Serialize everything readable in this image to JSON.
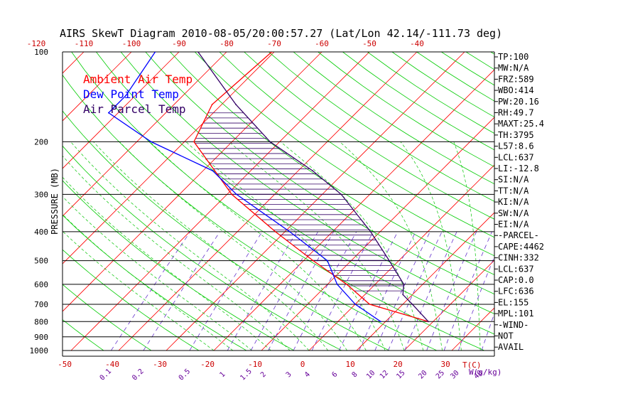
{
  "chart_data": {
    "type": "skew-t",
    "title": "AIRS SkewT Diagram 2010-08-05/20:00:57.27 (Lat/Lon 42.14/-111.73 deg)",
    "ylabel": "PRESSURE (MB)",
    "temp_unit_label": "T(C)",
    "mixing_unit_label": "W(g/kg)",
    "pressure_ticks": [
      "100",
      "200",
      "300",
      "400",
      "500",
      "600",
      "700",
      "800",
      "900",
      "1000"
    ],
    "pressure_levels": [
      100,
      200,
      300,
      400,
      500,
      600,
      700,
      800,
      900,
      1000
    ],
    "bottom_temp_ticks": [
      "-50",
      "-40",
      "-30",
      "-20",
      "-10",
      "0",
      "10",
      "20",
      "30"
    ],
    "top_temp_ticks": [
      "-120",
      "-110",
      "-100",
      "-90",
      "-80",
      "-70",
      "-60",
      "-50",
      "-40"
    ],
    "mixing_ratio_ticks": [
      "0.1",
      "0.2",
      "0.5",
      "1",
      "1.5",
      "2",
      "3",
      "4",
      "6",
      "8",
      "10",
      "12",
      "15",
      "20",
      "25",
      "30",
      "40",
      "50"
    ],
    "legend": [
      {
        "label": "Ambient Air Temp",
        "color": "#ff0000"
      },
      {
        "label": "Dew Point Temp",
        "color": "#0000ff"
      },
      {
        "label": "Air Parcel Temp",
        "color": "#330066"
      }
    ],
    "series": [
      {
        "name": "Ambient Air Temp",
        "color": "#ff0000",
        "points": [
          [
            100,
            -70.5
          ],
          [
            150,
            -72
          ],
          [
            200,
            -68
          ],
          [
            300,
            -49
          ],
          [
            400,
            -32
          ],
          [
            500,
            -18
          ],
          [
            600,
            -6
          ],
          [
            700,
            3
          ],
          [
            800,
            19
          ]
        ]
      },
      {
        "name": "Dew Point Temp",
        "color": "#0000ff",
        "points": [
          [
            100,
            -95
          ],
          [
            140,
            -92
          ],
          [
            160,
            -92
          ],
          [
            200,
            -77
          ],
          [
            250,
            -58
          ],
          [
            300,
            -48
          ],
          [
            400,
            -29
          ],
          [
            500,
            -15
          ],
          [
            600,
            -8
          ],
          [
            700,
            0
          ],
          [
            800,
            9
          ]
        ]
      },
      {
        "name": "Air Parcel Temp",
        "color": "#330066",
        "points": [
          [
            100,
            -86
          ],
          [
            150,
            -67
          ],
          [
            200,
            -52
          ],
          [
            250,
            -37
          ],
          [
            300,
            -26
          ],
          [
            400,
            -12
          ],
          [
            500,
            -2
          ],
          [
            600,
            6
          ],
          [
            650,
            8
          ],
          [
            700,
            12
          ],
          [
            800,
            19
          ]
        ]
      }
    ],
    "indices": [
      "TP:100",
      "MW:N/A",
      "FRZ:589",
      "WBO:414",
      "PW:20.16",
      "RH:49.7",
      "MAXT:25.4",
      "TH:3795",
      "L57:8.6",
      "LCL:637",
      "LI:-12.8",
      "SI:N/A",
      "TT:N/A",
      "KI:N/A",
      "SW:N/A",
      "EI:N/A",
      "-PARCEL-",
      "CAPE:4462",
      "CINH:332",
      "LCL:637",
      "CAP:0.0",
      "LFC:636",
      "EL:155",
      "MPL:101",
      "-WIND-",
      "NOT",
      "AVAIL"
    ],
    "grid": true
  }
}
